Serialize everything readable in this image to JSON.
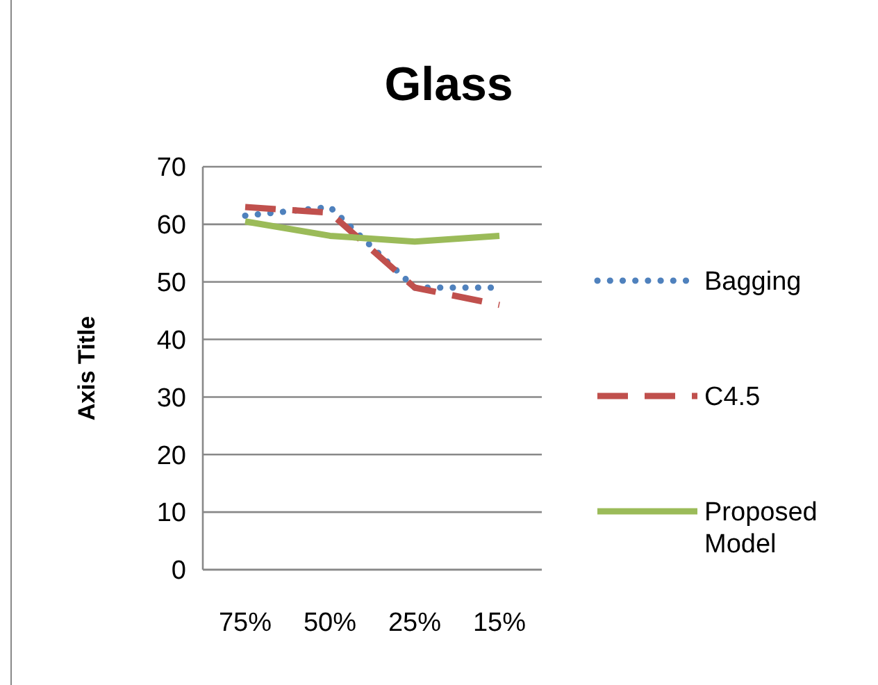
{
  "chart_data": {
    "type": "line",
    "title": "Glass",
    "ylabel": "Axis Title",
    "categories": [
      "75%",
      "50%",
      "25%",
      "15%"
    ],
    "series": [
      {
        "name": "Bagging",
        "color": "#4f81bd",
        "values": [
          61.5,
          63,
          49,
          49
        ],
        "line_style": "dotted"
      },
      {
        "name": "C4.5",
        "color": "#c0504d",
        "values": [
          63,
          62,
          49,
          46
        ],
        "line_style": "dashed"
      },
      {
        "name": "Proposed Model",
        "color": "#9bbb59",
        "values": [
          60.5,
          58,
          57,
          58
        ],
        "line_style": "solid"
      }
    ],
    "ylim": [
      0,
      70
    ],
    "yticks": [
      0,
      10,
      20,
      30,
      40,
      50,
      60,
      70
    ],
    "grid": "y",
    "legend": "right"
  }
}
